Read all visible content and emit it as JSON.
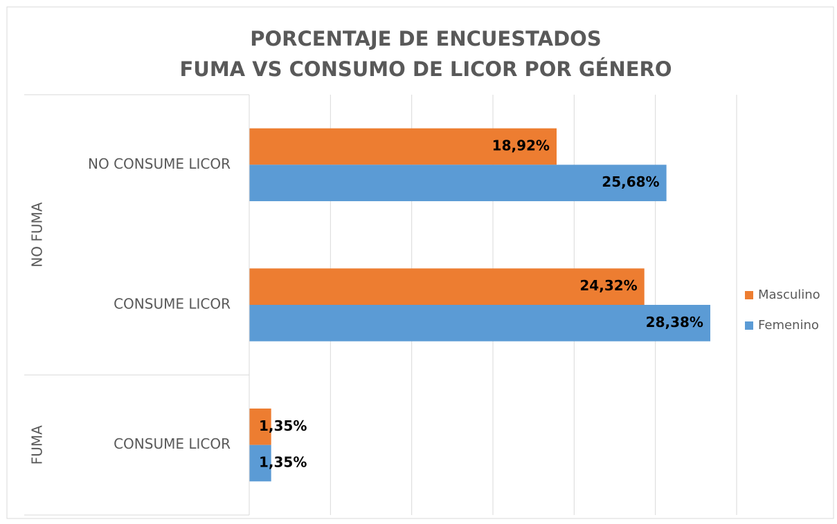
{
  "chart_data": {
    "type": "bar",
    "orientation": "horizontal",
    "title": [
      "PORCENTAJE DE ENCUESTADOS",
      "FUMA  VS CONSUMO DE LICOR POR GÉNERO"
    ],
    "groups": [
      {
        "name": "NO FUMA",
        "categories": [
          "NO CONSUME LICOR",
          "CONSUME LICOR"
        ]
      },
      {
        "name": "FUMA",
        "categories": [
          "CONSUME LICOR"
        ]
      }
    ],
    "series": [
      {
        "name": "Masculino",
        "color": "#ed7d31",
        "values": [
          18.92,
          24.32,
          1.35
        ],
        "value_labels": [
          "18,92%",
          "24,32%",
          "1,35%"
        ]
      },
      {
        "name": "Femenino",
        "color": "#5b9bd5",
        "values": [
          25.68,
          28.38,
          1.35
        ],
        "value_labels": [
          "25,68%",
          "28,38%",
          "1,35%"
        ]
      }
    ],
    "xlim": [
      0,
      30
    ],
    "xticks": [
      0,
      5,
      10,
      15,
      20,
      25,
      30
    ],
    "grid": true,
    "legend": "right"
  }
}
